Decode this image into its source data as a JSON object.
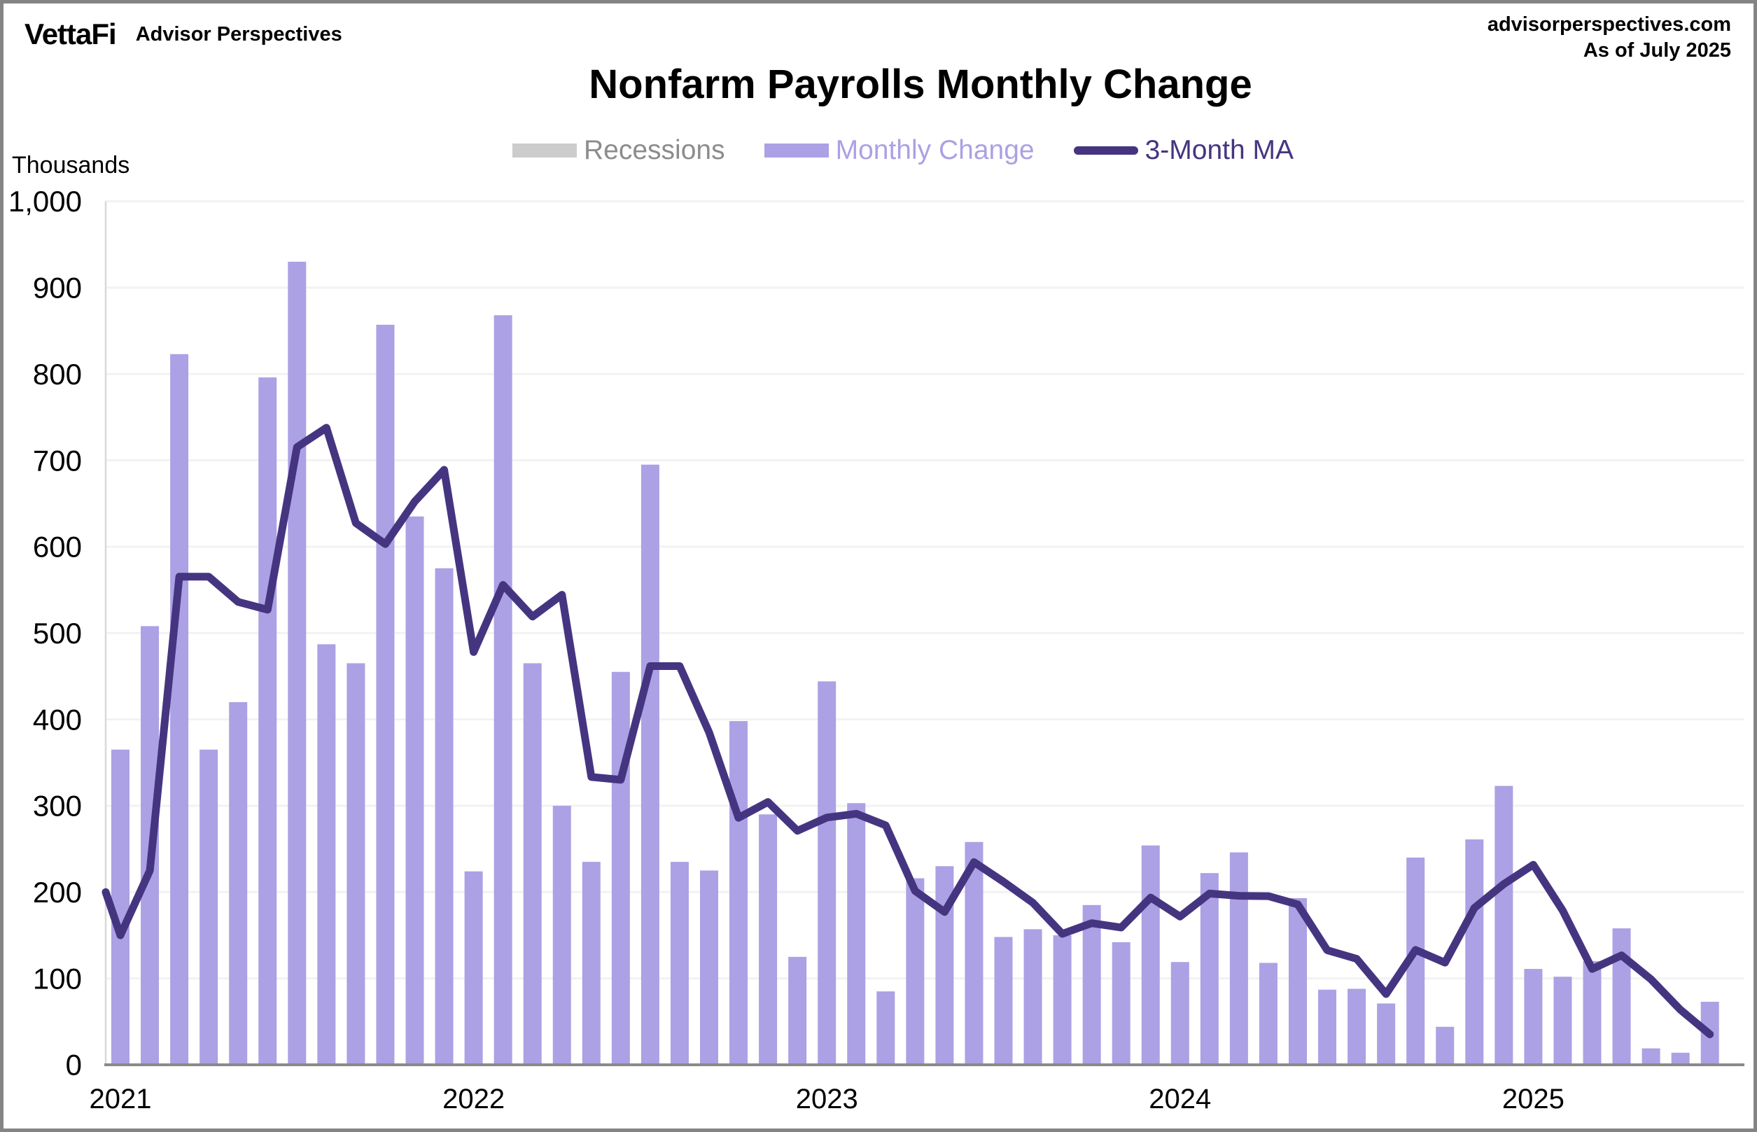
{
  "header": {
    "logo_text": "VettaFi",
    "logo_sub": "Advisor Perspectives",
    "site": "advisorperspectives.com",
    "as_of": "As of July 2025"
  },
  "chart_data": {
    "type": "bar",
    "title": "Nonfarm Payrolls Monthly Change",
    "unit_label": "Thousands",
    "ylabel": "Thousands",
    "xlabel": "",
    "ylim": [
      0,
      1000
    ],
    "ytick_step": 100,
    "ytick_labels": [
      "0",
      "100",
      "200",
      "300",
      "400",
      "500",
      "600",
      "700",
      "800",
      "900",
      "1,000"
    ],
    "x_year_labels": [
      "2021",
      "2022",
      "2023",
      "2024",
      "2025"
    ],
    "grid": true,
    "legend_position": "top-center",
    "legend": [
      {
        "label": "Recessions",
        "kind": "box",
        "color": "#cccccc",
        "text_color": "#8c8c8c"
      },
      {
        "label": "Monthly Change",
        "kind": "box",
        "color": "#aba1e4",
        "text_color": "#aba1e4"
      },
      {
        "label": "3-Month MA",
        "kind": "line",
        "color": "#453581",
        "text_color": "#453581"
      }
    ],
    "categories": [
      "Jan 2021",
      "Feb 2021",
      "Mar 2021",
      "Apr 2021",
      "May 2021",
      "Jun 2021",
      "Jul 2021",
      "Aug 2021",
      "Sep 2021",
      "Oct 2021",
      "Nov 2021",
      "Dec 2021",
      "Jan 2022",
      "Feb 2022",
      "Mar 2022",
      "Apr 2022",
      "May 2022",
      "Jun 2022",
      "Jul 2022",
      "Aug 2022",
      "Sep 2022",
      "Oct 2022",
      "Nov 2022",
      "Dec 2022",
      "Jan 2023",
      "Feb 2023",
      "Mar 2023",
      "Apr 2023",
      "May 2023",
      "Jun 2023",
      "Jul 2023",
      "Aug 2023",
      "Sep 2023",
      "Oct 2023",
      "Nov 2023",
      "Dec 2023",
      "Jan 2024",
      "Feb 2024",
      "Mar 2024",
      "Apr 2024",
      "May 2024",
      "Jun 2024",
      "Jul 2024",
      "Aug 2024",
      "Sep 2024",
      "Oct 2024",
      "Nov 2024",
      "Dec 2024",
      "Jan 2025",
      "Feb 2025",
      "Mar 2025",
      "Apr 2025",
      "May 2025",
      "Jun 2025",
      "Jul 2025"
    ],
    "series": [
      {
        "name": "Monthly Change",
        "values": [
          365,
          508,
          823,
          365,
          420,
          796,
          930,
          487,
          465,
          857,
          635,
          575,
          224,
          868,
          465,
          300,
          235,
          455,
          695,
          235,
          225,
          398,
          290,
          125,
          444,
          303,
          85,
          216,
          230,
          258,
          148,
          157,
          150,
          185,
          142,
          254,
          119,
          222,
          246,
          118,
          193,
          87,
          88,
          71,
          240,
          44,
          261,
          323,
          111,
          102,
          120,
          158,
          19,
          14,
          73
        ]
      },
      {
        "name": "3-Month MA",
        "values": [
          150,
          225,
          565.3,
          565.3,
          536,
          527,
          715.3,
          737.7,
          627.3,
          603,
          652.3,
          689,
          478,
          555.7,
          519,
          544.3,
          333.3,
          330,
          461.7,
          461.7,
          385,
          286,
          304.3,
          271,
          286.3,
          290.7,
          277.3,
          201.3,
          177,
          234.7,
          212,
          187.7,
          151.7,
          164,
          159,
          193.7,
          171.7,
          198.3,
          195.7,
          195.3,
          185.7,
          132.7,
          122.7,
          82,
          133,
          118.3,
          181.7,
          209.3,
          231.7,
          178.7,
          111,
          126.7,
          99,
          63.7,
          35.3
        ]
      }
    ],
    "ma_lead_value": 200,
    "colors": {
      "bar": "#aba1e4",
      "line": "#453581",
      "grid": "#f2f2f2",
      "x_axis": "#8a8a8a",
      "y_axis_line": "#d9d9d9",
      "tick_text": "#000000",
      "recession": "#cccccc"
    }
  }
}
